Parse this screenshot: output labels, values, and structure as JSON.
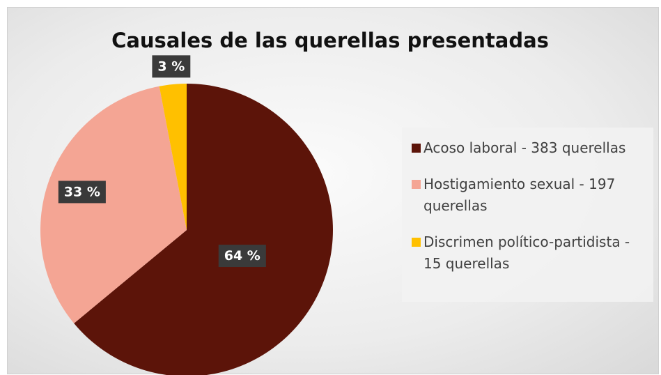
{
  "chart_data": {
    "type": "pie",
    "title": "Causales de las querellas presentadas",
    "categories": [
      "Acoso laboral - 383 querellas",
      "Hostigamiento sexual - 197 querellas",
      "Discrimen político-partidista - 15 querellas"
    ],
    "values": [
      64,
      33,
      3
    ],
    "value_labels": [
      "64 %",
      "33 %",
      "3 %"
    ],
    "colors": [
      "#5c1409",
      "#f4a594",
      "#ffc000"
    ],
    "legend": "right"
  }
}
